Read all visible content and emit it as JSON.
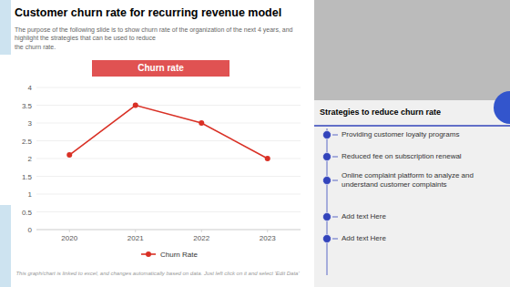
{
  "chart_data": {
    "type": "line",
    "title": "Customer churn rate for recurring revenue model",
    "subtitle": "The purpose of the following slide is to show churn rate of the organization of the next 4 years, and highlight the strategies that can be used to reduce\nthe churn rate.",
    "x": [
      2020,
      2021,
      2022,
      2023
    ],
    "series": [
      {
        "name": "Churn Rate",
        "color": "#d93025",
        "marker": "circle",
        "line_style": "solid",
        "values": [
          2.1,
          3.5,
          3.0,
          2.0
        ]
      }
    ],
    "xlim": [
      2019.5,
      2023.5
    ],
    "xticks": [
      2020,
      2021,
      2022,
      2023
    ],
    "ylim": [
      0,
      4
    ],
    "yticks": [
      0,
      0.5,
      1,
      1.5,
      2,
      2.5,
      3,
      3.5,
      4
    ],
    "grid": true,
    "legend": "bottom",
    "annotations": [
      "Churn rate",
      "Strategies to reduce churn rate",
      "Providing customer loyalty programs",
      "Reduced fee on subscription renewal",
      "Online complaint platform to analyze and\nunderstand customer complaints",
      "Add text Here",
      "Add text Here",
      "This graph/chart is linked to excel, and changes automatically based on data. Just left click on it and select 'Edit Data'"
    ]
  }
}
